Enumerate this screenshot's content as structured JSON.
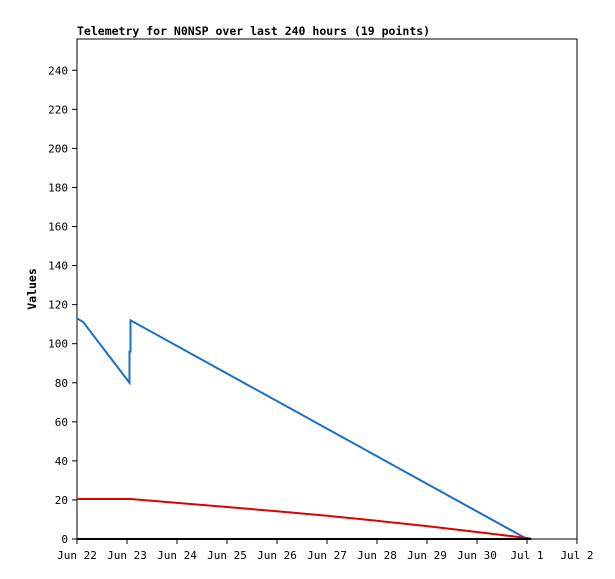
{
  "chart_data": {
    "type": "line",
    "title": "Telemetry for N0NSP over last 240 hours (19 points)",
    "ylabel": "Values",
    "xlabel": "",
    "x_ticks": [
      "Jun 22",
      "Jun 23",
      "Jun 24",
      "Jun 25",
      "Jun 26",
      "Jun 27",
      "Jun 28",
      "Jun 29",
      "Jun 30",
      "Jul 1",
      "Jul 2"
    ],
    "y_ticks": [
      0,
      20,
      40,
      60,
      80,
      100,
      120,
      140,
      160,
      180,
      200,
      220,
      240
    ],
    "xlim": [
      "Jun 22",
      "Jul 2"
    ],
    "ylim": [
      0,
      256
    ],
    "grid": false,
    "series": [
      {
        "color": "#1a6fc4",
        "points": [
          [
            "Jun 22 00:00",
            113
          ],
          [
            "Jun 22 03:00",
            111
          ],
          [
            "Jun 23 01:12",
            80
          ],
          [
            "Jun 23 01:12",
            96
          ],
          [
            "Jun 23 01:40",
            96
          ],
          [
            "Jun 23 01:40",
            112
          ],
          [
            "Jul 1 00:00",
            0
          ],
          [
            "Jul 1 02:00",
            0
          ]
        ]
      },
      {
        "color": "#e00000",
        "points": [
          [
            "Jun 22 00:00",
            20.5
          ],
          [
            "Jun 23 01:40",
            20.5
          ],
          [
            "Jun 24 00:00",
            18.5
          ],
          [
            "Jun 25 00:00",
            16.4
          ],
          [
            "Jun 26 00:00",
            14.2
          ],
          [
            "Jun 27 00:00",
            11.9
          ],
          [
            "Jun 28 00:00",
            9.3
          ],
          [
            "Jun 29 00:00",
            6.6
          ],
          [
            "Jun 30 00:00",
            3.6
          ],
          [
            "Jul 1 00:00",
            0.5
          ],
          [
            "Jul 1 02:00",
            0
          ]
        ]
      },
      {
        "color": "#000000",
        "points": [
          [
            "Jun 22 00:00",
            0
          ],
          [
            "Jul 1 02:00",
            0
          ]
        ]
      }
    ]
  }
}
